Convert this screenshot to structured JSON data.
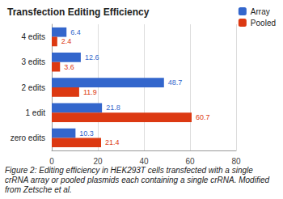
{
  "chart_data": {
    "type": "bar",
    "orientation": "horizontal",
    "title": "Transfection Editing Efficiency",
    "caption": "Figure 2: Editing efficiency in HEK293T cells transfected with a single crRNA array or pooled plasmids each containing a single crRNA. Modified from Zetsche et al.",
    "categories": [
      "4 edits",
      "3 edits",
      "2 edits",
      "1 edit",
      "zero edits"
    ],
    "series": [
      {
        "name": "Array",
        "color": "#3366cc",
        "values": [
          6.4,
          12.6,
          48.7,
          21.8,
          10.3
        ]
      },
      {
        "name": "Pooled",
        "color": "#dc3912",
        "values": [
          2.4,
          3.6,
          11.9,
          60.7,
          21.4
        ]
      }
    ],
    "xlim": [
      0,
      80
    ],
    "xticks": [
      0,
      20,
      40,
      60,
      80
    ],
    "grid": true,
    "legend": "top-right",
    "data_labels": true
  }
}
